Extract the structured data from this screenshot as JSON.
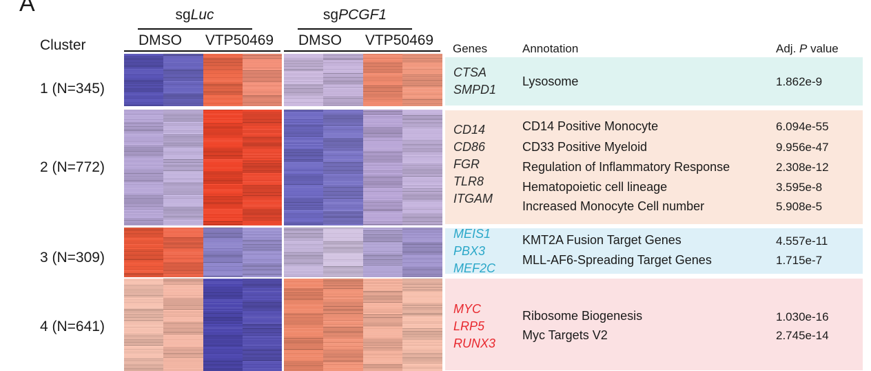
{
  "panel_letter": "A",
  "condition_groups": [
    {
      "prefix": "sg",
      "gene": "Luc"
    },
    {
      "prefix": "sg",
      "gene": "PCGF1"
    }
  ],
  "conditions": [
    "DMSO",
    "VTP50469",
    "DMSO",
    "VTP50469"
  ],
  "cluster_header": "Cluster",
  "table_headers": {
    "genes": "Genes",
    "annotation": "Annotation",
    "pvalue_prefix": "Adj. ",
    "pvalue_italic": "P",
    "pvalue_suffix": " value"
  },
  "clusters": [
    {
      "label": "1 (N=345)",
      "color": "#def3f1",
      "gene_color": "#2b2b2b",
      "genes": [
        "CTSA",
        "SMPD1"
      ],
      "annotations": [
        {
          "term": "Lysosome",
          "p": "1.862e-9"
        }
      ],
      "heatmap_colors": [
        "#5a55b8",
        "#6b66c0",
        "#ef6a4a",
        "#f4917a",
        "#cdbbe0",
        "#c8b6dd",
        "#f08a6e",
        "#f29a80"
      ]
    },
    {
      "label": "2 (N=772)",
      "color": "#fbe7dc",
      "gene_color": "#2b2b2b",
      "genes": [
        "CD14",
        "CD86",
        "FGR",
        "TLR8",
        "ITGAM"
      ],
      "annotations": [
        {
          "term": "CD14 Positive Monocyte",
          "p": "6.094e-55"
        },
        {
          "term": "CD33 Positive Myeloid",
          "p": "9.956e-47"
        },
        {
          "term": "Regulation of Inflammatory Response",
          "p": "2.308e-12"
        },
        {
          "term": "Hematopoietic cell lineage",
          "p": "3.595e-8"
        },
        {
          "term": "Increased Monocyte Cell number",
          "p": "5.908e-5"
        }
      ],
      "heatmap_colors": [
        "#b8a8d8",
        "#c2b3dd",
        "#f0452a",
        "#ee4a30",
        "#6f6ac4",
        "#7c76c8",
        "#b9a6d7",
        "#c6b5de"
      ]
    },
    {
      "label": "3 (N=309)",
      "color": "#ddf0f8",
      "gene_color": "#2aa7c8",
      "genes": [
        "MEIS1",
        "PBX3",
        "MEF2C"
      ],
      "annotations": [
        {
          "term": "KMT2A Fusion Target Genes",
          "p": "4.557e-11"
        },
        {
          "term": "MLL-AF6-Spreading Target Genes",
          "p": "1.715e-7"
        }
      ],
      "heatmap_colors": [
        "#ef5a3a",
        "#f0674a",
        "#8f86cc",
        "#9d93d2",
        "#c7b8dd",
        "#d3c4e2",
        "#b3a6d6",
        "#a397d0"
      ]
    },
    {
      "label": "4 (N=641)",
      "color": "#fbe1e3",
      "gene_color": "#e8282e",
      "genes": [
        "MYC",
        "LRP5",
        "RUNX3"
      ],
      "annotations": [
        {
          "term": "Ribosome Biogenesis",
          "p": "1.030e-16"
        },
        {
          "term": "Myc Targets V2",
          "p": "2.745e-14"
        }
      ],
      "heatmap_colors": [
        "#f7c3b2",
        "#f5b8a6",
        "#4f49b1",
        "#5852b5",
        "#f08a6c",
        "#f29478",
        "#f5b39e",
        "#f7c0ad"
      ]
    }
  ]
}
